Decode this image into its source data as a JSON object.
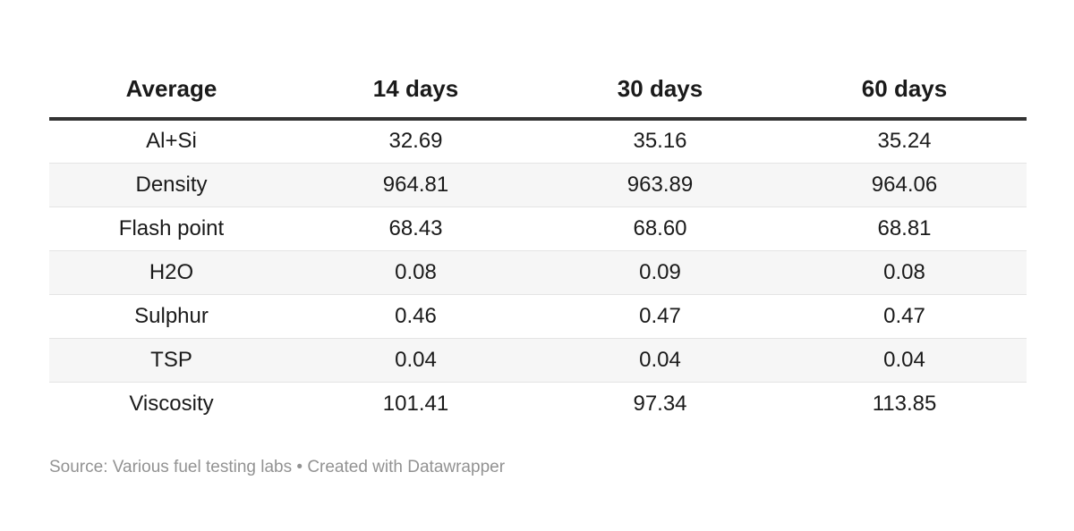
{
  "chart_data": {
    "type": "table",
    "title": "",
    "columns": [
      "Average",
      "14 days",
      "30 days",
      "60 days"
    ],
    "rows": [
      {
        "label": "Al+Si",
        "values": [
          32.69,
          35.16,
          35.24
        ]
      },
      {
        "label": "Density",
        "values": [
          964.81,
          963.89,
          964.06
        ]
      },
      {
        "label": "Flash point",
        "values": [
          68.43,
          68.6,
          68.81
        ]
      },
      {
        "label": "H2O",
        "values": [
          0.08,
          0.09,
          0.08
        ]
      },
      {
        "label": "Sulphur",
        "values": [
          0.46,
          0.47,
          0.47
        ]
      },
      {
        "label": "TSP",
        "values": [
          0.04,
          0.04,
          0.04
        ]
      },
      {
        "label": "Viscosity",
        "values": [
          101.41,
          97.34,
          113.85
        ]
      }
    ],
    "source": "Various fuel testing labs",
    "credit": "Created with Datawrapper",
    "layout_hints": {
      "striped_rows": true,
      "stripe_rows_indices": [
        1,
        3,
        5
      ],
      "header_rule": "thick",
      "cell_alignment": "center"
    }
  },
  "table": {
    "columns": [
      "Average",
      "14 days",
      "30 days",
      "60 days"
    ],
    "rows": [
      {
        "label": "Al+Si",
        "values": [
          "32.69",
          "35.16",
          "35.24"
        ]
      },
      {
        "label": "Density",
        "values": [
          "964.81",
          "963.89",
          "964.06"
        ]
      },
      {
        "label": "Flash point",
        "values": [
          "68.43",
          "68.60",
          "68.81"
        ]
      },
      {
        "label": "H2O",
        "values": [
          "0.08",
          "0.09",
          "0.08"
        ]
      },
      {
        "label": "Sulphur",
        "values": [
          "0.46",
          "0.47",
          "0.47"
        ]
      },
      {
        "label": "TSP",
        "values": [
          "0.04",
          "0.04",
          "0.04"
        ]
      },
      {
        "label": "Viscosity",
        "values": [
          "101.41",
          "97.34",
          "113.85"
        ]
      }
    ]
  },
  "footer": {
    "source_prefix": "Source: ",
    "source_name": "Various fuel testing labs",
    "separator": " • ",
    "credit": "Created with Datawrapper"
  },
  "colors": {
    "text": "#1a1a1a",
    "header_rule": "#333333",
    "row_stripe": "#f6f6f6",
    "row_border": "#e4e4e4",
    "footer_text": "#929292",
    "background": "#ffffff"
  }
}
